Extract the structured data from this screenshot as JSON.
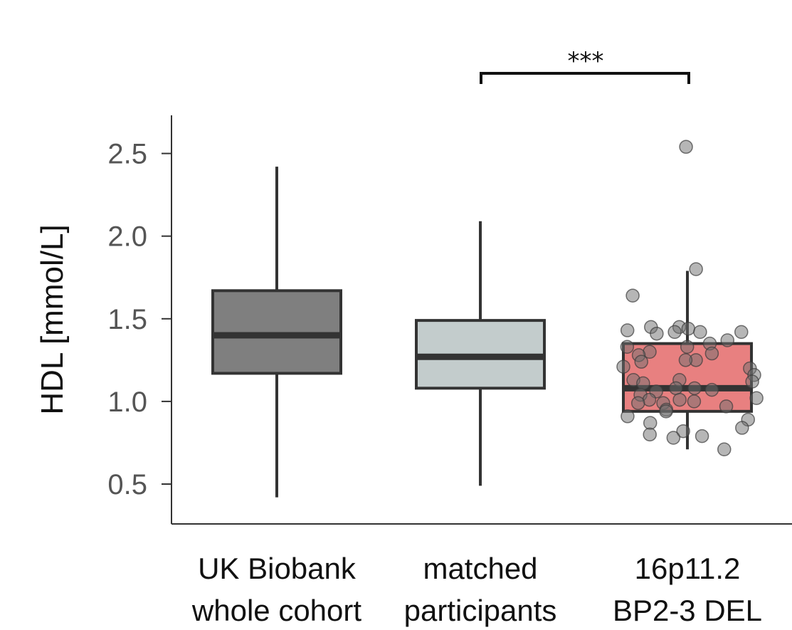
{
  "chart_data": {
    "type": "box",
    "ylabel": "HDL [mmol/L]",
    "ylim": [
      0.28,
      2.74
    ],
    "yticks": [
      "0.5",
      "1.0",
      "1.5",
      "2.0",
      "2.5"
    ],
    "grid": false,
    "categories": [
      {
        "line1": "UK Biobank",
        "line2": "whole cohort"
      },
      {
        "line1": "matched",
        "line2": "participants"
      },
      {
        "line1": "16p11.2",
        "line2": "BP2-3 DEL"
      }
    ],
    "boxes": [
      {
        "whisker_low": 0.42,
        "q1": 1.17,
        "median": 1.4,
        "q3": 1.67,
        "whisker_high": 2.42,
        "color": "#7f7f7f"
      },
      {
        "whisker_low": 0.49,
        "q1": 1.08,
        "median": 1.27,
        "q3": 1.49,
        "whisker_high": 2.09,
        "color": "#c3cccc"
      },
      {
        "whisker_low": 0.71,
        "q1": 0.94,
        "median": 1.08,
        "q3": 1.35,
        "whisker_high": 1.79,
        "color": "#e88080"
      }
    ],
    "points": {
      "category_index": 2,
      "values": [
        2.54,
        1.8,
        1.64,
        1.45,
        1.45,
        1.44,
        1.43,
        1.42,
        1.42,
        1.42,
        1.41,
        1.37,
        1.35,
        1.33,
        1.33,
        1.3,
        1.29,
        1.28,
        1.25,
        1.25,
        1.24,
        1.21,
        1.2,
        1.16,
        1.13,
        1.13,
        1.12,
        1.11,
        1.08,
        1.08,
        1.07,
        1.06,
        1.04,
        1.02,
        1.01,
        1.01,
        1.0,
        0.99,
        0.99,
        0.97,
        0.95,
        0.94,
        0.91,
        0.89,
        0.87,
        0.84,
        0.82,
        0.8,
        0.79,
        0.78,
        0.71
      ]
    },
    "significance": {
      "label": "***",
      "from_index": 1,
      "to_index": 2
    }
  }
}
